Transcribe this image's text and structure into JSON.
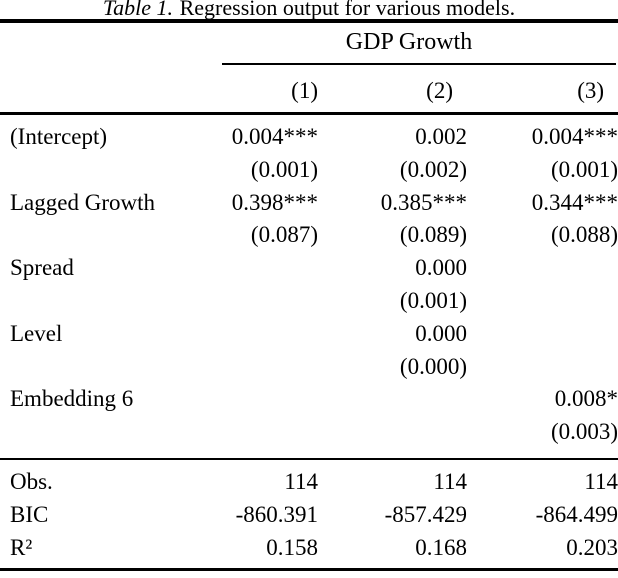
{
  "caption": {
    "label": "Table 1.",
    "text": "Regression output for various models."
  },
  "table": {
    "dependent_header": "GDP Growth",
    "model_headers": [
      "(1)",
      "(2)",
      "(3)"
    ],
    "coefficients": [
      {
        "name": "(Intercept)",
        "estimates": [
          "0.004***",
          "0.002",
          "0.004***"
        ],
        "std_errors": [
          "(0.001)",
          "(0.002)",
          "(0.001)"
        ]
      },
      {
        "name": "Lagged Growth",
        "estimates": [
          "0.398***",
          "0.385***",
          "0.344***"
        ],
        "std_errors": [
          "(0.087)",
          "(0.089)",
          "(0.088)"
        ]
      },
      {
        "name": "Spread",
        "estimates": [
          "",
          "0.000",
          ""
        ],
        "std_errors": [
          "",
          "(0.001)",
          ""
        ]
      },
      {
        "name": "Level",
        "estimates": [
          "",
          "0.000",
          ""
        ],
        "std_errors": [
          "",
          "(0.000)",
          ""
        ]
      },
      {
        "name": "Embedding 6",
        "estimates": [
          "",
          "",
          "0.008*"
        ],
        "std_errors": [
          "",
          "",
          "(0.003)"
        ]
      }
    ],
    "stats": [
      {
        "name": "Obs.",
        "values": [
          "114",
          "114",
          "114"
        ]
      },
      {
        "name": "BIC",
        "values": [
          "-860.391",
          "-857.429",
          "-864.499"
        ]
      },
      {
        "name": "R²",
        "values": [
          "0.158",
          "0.168",
          "0.203"
        ]
      }
    ]
  },
  "colors": {
    "text": "#000000",
    "rules": "#000000",
    "background": "#ffffff"
  }
}
